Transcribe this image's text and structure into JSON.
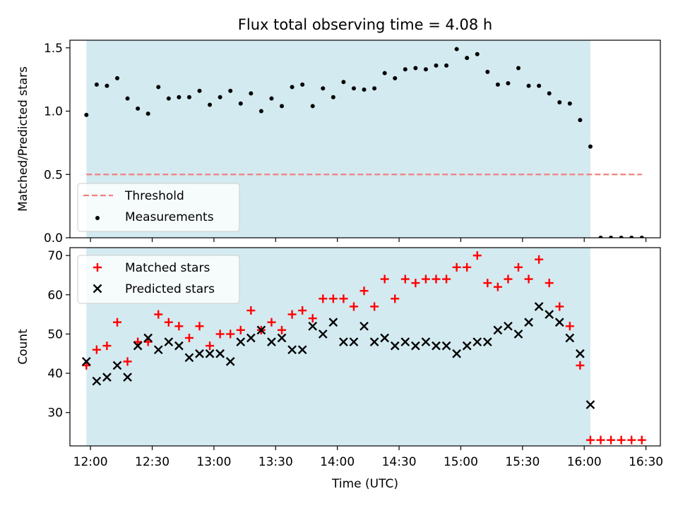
{
  "title": "Flux total observing time = 4.08 h",
  "chart_data": [
    {
      "type": "scatter",
      "ylabel": "Matched/Predicted stars",
      "xlabel": "",
      "x_ticks": [
        "12:00",
        "12:30",
        "13:00",
        "13:30",
        "14:00",
        "14:30",
        "15:00",
        "15:30",
        "16:00",
        "16:30"
      ],
      "xlim": [
        "11:50",
        "16:37"
      ],
      "ylim": [
        0,
        1.56
      ],
      "y_ticks": [
        "0.0",
        "0.5",
        "1.0",
        "1.5"
      ],
      "observing_window": [
        "11:58",
        "16:03"
      ],
      "legend_position": "lower-left",
      "series": [
        {
          "name": "Measurements",
          "marker": "dot",
          "color": "#000000",
          "points": [
            [
              "11:58",
              0.97
            ],
            [
              "12:03",
              1.21
            ],
            [
              "12:08",
              1.2
            ],
            [
              "12:13",
              1.26
            ],
            [
              "12:18",
              1.1
            ],
            [
              "12:23",
              1.02
            ],
            [
              "12:28",
              0.98
            ],
            [
              "12:33",
              1.19
            ],
            [
              "12:38",
              1.1
            ],
            [
              "12:43",
              1.11
            ],
            [
              "12:48",
              1.11
            ],
            [
              "12:53",
              1.16
            ],
            [
              "12:58",
              1.05
            ],
            [
              "13:03",
              1.11
            ],
            [
              "13:08",
              1.16
            ],
            [
              "13:13",
              1.06
            ],
            [
              "13:18",
              1.14
            ],
            [
              "13:23",
              1.0
            ],
            [
              "13:28",
              1.1
            ],
            [
              "13:33",
              1.04
            ],
            [
              "13:38",
              1.19
            ],
            [
              "13:43",
              1.21
            ],
            [
              "13:48",
              1.04
            ],
            [
              "13:53",
              1.18
            ],
            [
              "13:58",
              1.11
            ],
            [
              "14:03",
              1.23
            ],
            [
              "14:08",
              1.18
            ],
            [
              "14:13",
              1.17
            ],
            [
              "14:18",
              1.18
            ],
            [
              "14:23",
              1.3
            ],
            [
              "14:28",
              1.26
            ],
            [
              "14:33",
              1.33
            ],
            [
              "14:38",
              1.34
            ],
            [
              "14:43",
              1.33
            ],
            [
              "14:48",
              1.36
            ],
            [
              "14:53",
              1.36
            ],
            [
              "14:58",
              1.49
            ],
            [
              "15:03",
              1.42
            ],
            [
              "15:08",
              1.45
            ],
            [
              "15:13",
              1.31
            ],
            [
              "15:18",
              1.21
            ],
            [
              "15:23",
              1.22
            ],
            [
              "15:28",
              1.34
            ],
            [
              "15:33",
              1.2
            ],
            [
              "15:38",
              1.2
            ],
            [
              "15:43",
              1.14
            ],
            [
              "15:48",
              1.07
            ],
            [
              "15:53",
              1.06
            ],
            [
              "15:58",
              0.93
            ],
            [
              "16:03",
              0.72
            ],
            [
              "16:08",
              0.0
            ],
            [
              "16:13",
              0.0
            ],
            [
              "16:18",
              0.0
            ],
            [
              "16:23",
              0.0
            ],
            [
              "16:28",
              0.0
            ]
          ]
        },
        {
          "name": "Threshold",
          "style": "dashed",
          "color": "#f08080",
          "points": [
            [
              "11:58",
              0.5
            ],
            [
              "16:28",
              0.5
            ]
          ]
        }
      ]
    },
    {
      "type": "scatter",
      "ylabel": "Count",
      "xlabel": "Time (UTC)",
      "x_ticks": [
        "12:00",
        "12:30",
        "13:00",
        "13:30",
        "14:00",
        "14:30",
        "15:00",
        "15:30",
        "16:00",
        "16:30"
      ],
      "xlim": [
        "11:50",
        "16:37"
      ],
      "ylim": [
        21.5,
        72
      ],
      "y_ticks": [
        "30",
        "40",
        "50",
        "60",
        "70"
      ],
      "observing_window": [
        "11:58",
        "16:03"
      ],
      "legend_position": "upper-left",
      "series": [
        {
          "name": "Matched stars",
          "marker": "plus",
          "color": "#ff0000",
          "points": [
            [
              "11:58",
              42
            ],
            [
              "12:03",
              46
            ],
            [
              "12:08",
              47
            ],
            [
              "12:13",
              53
            ],
            [
              "12:18",
              43
            ],
            [
              "12:23",
              48
            ],
            [
              "12:28",
              48
            ],
            [
              "12:33",
              55
            ],
            [
              "12:38",
              53
            ],
            [
              "12:43",
              52
            ],
            [
              "12:48",
              49
            ],
            [
              "12:53",
              52
            ],
            [
              "12:58",
              47
            ],
            [
              "13:03",
              50
            ],
            [
              "13:08",
              50
            ],
            [
              "13:13",
              51
            ],
            [
              "13:18",
              56
            ],
            [
              "13:23",
              51
            ],
            [
              "13:28",
              53
            ],
            [
              "13:33",
              51
            ],
            [
              "13:38",
              55
            ],
            [
              "13:43",
              56
            ],
            [
              "13:48",
              54
            ],
            [
              "13:53",
              59
            ],
            [
              "13:58",
              59
            ],
            [
              "14:03",
              59
            ],
            [
              "14:08",
              57
            ],
            [
              "14:13",
              61
            ],
            [
              "14:18",
              57
            ],
            [
              "14:23",
              64
            ],
            [
              "14:28",
              59
            ],
            [
              "14:33",
              64
            ],
            [
              "14:38",
              63
            ],
            [
              "14:43",
              64
            ],
            [
              "14:48",
              64
            ],
            [
              "14:53",
              64
            ],
            [
              "14:58",
              67
            ],
            [
              "15:03",
              67
            ],
            [
              "15:08",
              70
            ],
            [
              "15:13",
              63
            ],
            [
              "15:18",
              62
            ],
            [
              "15:23",
              64
            ],
            [
              "15:28",
              67
            ],
            [
              "15:33",
              64
            ],
            [
              "15:38",
              69
            ],
            [
              "15:43",
              63
            ],
            [
              "15:48",
              57
            ],
            [
              "15:53",
              52
            ],
            [
              "15:58",
              42
            ],
            [
              "16:03",
              23
            ],
            [
              "16:08",
              23
            ],
            [
              "16:13",
              23
            ],
            [
              "16:18",
              23
            ],
            [
              "16:23",
              23
            ],
            [
              "16:28",
              23
            ]
          ]
        },
        {
          "name": "Predicted stars",
          "marker": "x",
          "color": "#000000",
          "points": [
            [
              "11:58",
              43
            ],
            [
              "12:03",
              38
            ],
            [
              "12:08",
              39
            ],
            [
              "12:13",
              42
            ],
            [
              "12:18",
              39
            ],
            [
              "12:23",
              47
            ],
            [
              "12:28",
              49
            ],
            [
              "12:33",
              46
            ],
            [
              "12:38",
              48
            ],
            [
              "12:43",
              47
            ],
            [
              "12:48",
              44
            ],
            [
              "12:53",
              45
            ],
            [
              "12:58",
              45
            ],
            [
              "13:03",
              45
            ],
            [
              "13:08",
              43
            ],
            [
              "13:13",
              48
            ],
            [
              "13:18",
              49
            ],
            [
              "13:23",
              51
            ],
            [
              "13:28",
              48
            ],
            [
              "13:33",
              49
            ],
            [
              "13:38",
              46
            ],
            [
              "13:43",
              46
            ],
            [
              "13:48",
              52
            ],
            [
              "13:53",
              50
            ],
            [
              "13:58",
              53
            ],
            [
              "14:03",
              48
            ],
            [
              "14:08",
              48
            ],
            [
              "14:13",
              52
            ],
            [
              "14:18",
              48
            ],
            [
              "14:23",
              49
            ],
            [
              "14:28",
              47
            ],
            [
              "14:33",
              48
            ],
            [
              "14:38",
              47
            ],
            [
              "14:43",
              48
            ],
            [
              "14:48",
              47
            ],
            [
              "14:53",
              47
            ],
            [
              "14:58",
              45
            ],
            [
              "15:03",
              47
            ],
            [
              "15:08",
              48
            ],
            [
              "15:13",
              48
            ],
            [
              "15:18",
              51
            ],
            [
              "15:23",
              52
            ],
            [
              "15:28",
              50
            ],
            [
              "15:33",
              53
            ],
            [
              "15:38",
              57
            ],
            [
              "15:43",
              55
            ],
            [
              "15:48",
              53
            ],
            [
              "15:53",
              49
            ],
            [
              "15:58",
              45
            ],
            [
              "16:03",
              32
            ]
          ]
        }
      ]
    }
  ],
  "colors": {
    "observing_shade": "#d3eaf0",
    "threshold": "#f08080",
    "matched": "#ff0000",
    "predicted": "#000000",
    "measurements": "#000000"
  }
}
